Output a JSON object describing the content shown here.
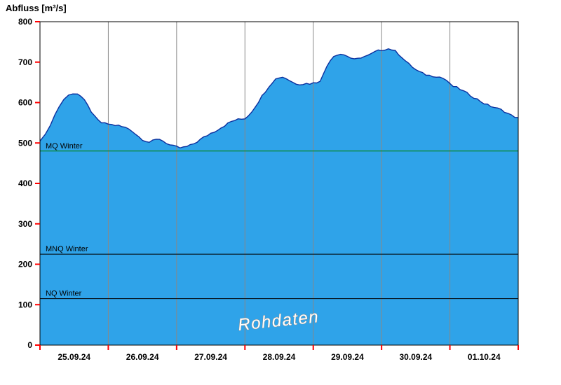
{
  "title": "Abfluss [m³/s]",
  "watermark": "Rohdaten",
  "colors": {
    "area_fill": "#2fa3e9",
    "area_stroke": "#0b2f9e",
    "grid": "#888888",
    "tick": "#ff0000",
    "axis": "#000000",
    "label": "#000000",
    "mq_line": "#008000",
    "ref_line": "#000000",
    "watermark_fill": "#ffffff",
    "watermark_stroke": "#909090"
  },
  "chart_data": {
    "type": "area",
    "title": "Abfluss [m³/s]",
    "ylabel": "Abfluss [m³/s]",
    "ylim": [
      0,
      800
    ],
    "yticks": [
      0,
      100,
      200,
      300,
      400,
      500,
      600,
      700,
      800
    ],
    "x_range_days": [
      0,
      7
    ],
    "xtick_labels": [
      "25.09.24",
      "26.09.24",
      "27.09.24",
      "28.09.24",
      "29.09.24",
      "30.09.24",
      "01.10.24"
    ],
    "grid": "vertical-day-boundaries",
    "legend": "none",
    "series": [
      {
        "name": "Abfluss Rohdaten",
        "x": [
          0.0,
          0.08,
          0.15,
          0.22,
          0.28,
          0.35,
          0.42,
          0.48,
          0.55,
          0.6,
          0.65,
          0.7,
          0.75,
          0.8,
          0.85,
          0.9,
          0.95,
          1.0,
          1.05,
          1.1,
          1.15,
          1.2,
          1.25,
          1.3,
          1.35,
          1.4,
          1.45,
          1.5,
          1.55,
          1.6,
          1.65,
          1.7,
          1.75,
          1.8,
          1.85,
          1.9,
          1.95,
          2.0,
          2.05,
          2.1,
          2.15,
          2.2,
          2.25,
          2.3,
          2.35,
          2.4,
          2.45,
          2.5,
          2.55,
          2.6,
          2.65,
          2.7,
          2.75,
          2.8,
          2.85,
          2.9,
          2.95,
          3.0,
          3.05,
          3.1,
          3.15,
          3.2,
          3.25,
          3.3,
          3.35,
          3.4,
          3.45,
          3.5,
          3.55,
          3.6,
          3.65,
          3.7,
          3.75,
          3.8,
          3.85,
          3.9,
          3.95,
          4.0,
          4.05,
          4.1,
          4.15,
          4.2,
          4.25,
          4.3,
          4.35,
          4.4,
          4.45,
          4.5,
          4.55,
          4.6,
          4.65,
          4.7,
          4.75,
          4.8,
          4.85,
          4.9,
          4.95,
          5.0,
          5.05,
          5.1,
          5.15,
          5.2,
          5.25,
          5.3,
          5.35,
          5.4,
          5.45,
          5.5,
          5.55,
          5.6,
          5.65,
          5.7,
          5.75,
          5.8,
          5.85,
          5.9,
          5.95,
          6.0,
          6.05,
          6.1,
          6.15,
          6.2,
          6.25,
          6.3,
          6.35,
          6.4,
          6.45,
          6.5,
          6.55,
          6.6,
          6.65,
          6.7,
          6.75,
          6.8,
          6.85,
          6.9,
          6.95,
          7.0
        ],
        "values": [
          505,
          520,
          545,
          570,
          590,
          608,
          618,
          623,
          622,
          615,
          605,
          592,
          578,
          565,
          556,
          550,
          548,
          547,
          545,
          544,
          543,
          540,
          538,
          535,
          530,
          522,
          515,
          509,
          505,
          502,
          505,
          508,
          510,
          505,
          500,
          495,
          492,
          490,
          488,
          489,
          491,
          494,
          498,
          503,
          509,
          514,
          519,
          524,
          528,
          533,
          538,
          543,
          548,
          553,
          556,
          558,
          559,
          561,
          568,
          578,
          590,
          603,
          616,
          628,
          640,
          650,
          658,
          662,
          663,
          660,
          655,
          650,
          647,
          646,
          646,
          647,
          647,
          648,
          650,
          655,
          670,
          690,
          706,
          715,
          719,
          720,
          718,
          715,
          710,
          706,
          708,
          712,
          714,
          716,
          720,
          725,
          728,
          730,
          732,
          733,
          731,
          727,
          720,
          712,
          703,
          695,
          688,
          681,
          676,
          672,
          669,
          667,
          666,
          665,
          663,
          660,
          655,
          645,
          640,
          637,
          633,
          628,
          623,
          618,
          613,
          608,
          603,
          598,
          594,
          591,
          588,
          585,
          582,
          578,
          573,
          568,
          565,
          563
        ]
      }
    ],
    "reference_lines": [
      {
        "label": "MQ Winter",
        "value": 480,
        "color": "#008000"
      },
      {
        "label": "MNQ Winter",
        "value": 225,
        "color": "#000000"
      },
      {
        "label": "NQ Winter",
        "value": 115,
        "color": "#000000"
      }
    ],
    "annotations": [
      {
        "text": "Rohdaten",
        "style": "watermark"
      }
    ]
  }
}
